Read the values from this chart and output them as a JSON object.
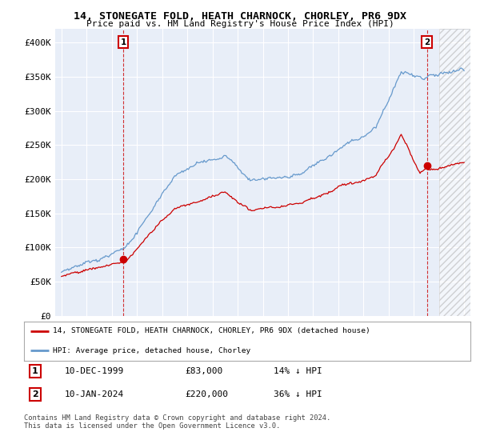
{
  "title": "14, STONEGATE FOLD, HEATH CHARNOCK, CHORLEY, PR6 9DX",
  "subtitle": "Price paid vs. HM Land Registry's House Price Index (HPI)",
  "legend_red": "14, STONEGATE FOLD, HEATH CHARNOCK, CHORLEY, PR6 9DX (detached house)",
  "legend_blue": "HPI: Average price, detached house, Chorley",
  "point1_date": "10-DEC-1999",
  "point1_price": "£83,000",
  "point1_hpi": "14% ↓ HPI",
  "point2_date": "10-JAN-2024",
  "point2_price": "£220,000",
  "point2_hpi": "36% ↓ HPI",
  "footer": "Contains HM Land Registry data © Crown copyright and database right 2024.\nThis data is licensed under the Open Government Licence v3.0.",
  "ylim": [
    0,
    420000
  ],
  "yticks": [
    0,
    50000,
    100000,
    150000,
    200000,
    250000,
    300000,
    350000,
    400000
  ],
  "ytick_labels": [
    "£0",
    "£50K",
    "£100K",
    "£150K",
    "£200K",
    "£250K",
    "£300K",
    "£350K",
    "£400K"
  ],
  "background_color": "#ffffff",
  "plot_bg_color": "#e8eef8",
  "grid_color": "#ffffff",
  "red_color": "#cc0000",
  "blue_color": "#6699cc",
  "point1_x": 1999.92,
  "point1_y": 83000,
  "point2_x": 2024.04,
  "point2_y": 220000,
  "hatch_start": 2025.0,
  "xlim_start": 1994.5,
  "xlim_end": 2027.5
}
